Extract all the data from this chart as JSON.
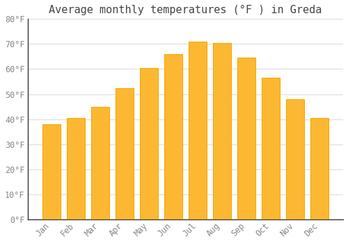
{
  "title": "Average monthly temperatures (°F ) in Greda",
  "months": [
    "Jan",
    "Feb",
    "Mar",
    "Apr",
    "May",
    "Jun",
    "Jul",
    "Aug",
    "Sep",
    "Oct",
    "Nov",
    "Dec"
  ],
  "values": [
    38,
    40.5,
    45,
    52.5,
    60.5,
    66,
    71,
    70.5,
    64.5,
    56.5,
    48,
    40.5
  ],
  "bar_color_face": "#FDB833",
  "bar_color_edge": "#F5A800",
  "background_color": "#ffffff",
  "grid_color": "#dddddd",
  "ylim": [
    0,
    80
  ],
  "yticks": [
    0,
    10,
    20,
    30,
    40,
    50,
    60,
    70,
    80
  ],
  "title_fontsize": 11,
  "tick_fontsize": 8.5,
  "tick_color": "#888888",
  "title_color": "#444444"
}
